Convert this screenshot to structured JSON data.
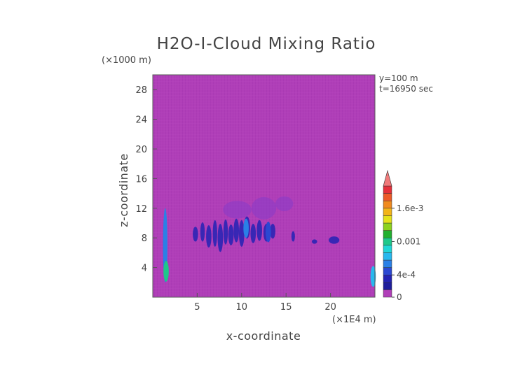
{
  "chart_data": {
    "type": "heatmap",
    "title": "H2O-I-Cloud Mixing Ratio",
    "xlabel": "x-coordinate",
    "ylabel": "z-coordinate",
    "x_unit": "(×1E4 m)",
    "y_unit": "(×1000 m)",
    "annotations": [
      "y=100 m",
      "t=16950 sec"
    ],
    "xlim": [
      0,
      25
    ],
    "ylim": [
      0,
      30
    ],
    "x_ticks": [
      5,
      10,
      15,
      20
    ],
    "y_ticks": [
      4,
      8,
      12,
      16,
      20,
      24,
      28
    ],
    "grid": false,
    "background_color": "#b03fb8",
    "colorbar": {
      "tick_labels": [
        "0",
        "4e-4",
        "0.001",
        "1.6e-3"
      ],
      "tick_values": [
        0,
        0.0004,
        0.001,
        0.0016
      ],
      "colors": [
        "#b03fb8",
        "#1e1e9c",
        "#2323b4",
        "#2b48d2",
        "#2a80e6",
        "#27b8ee",
        "#1fd6d6",
        "#1ec88a",
        "#22b02e",
        "#8cd21e",
        "#e4e21a",
        "#f2b418",
        "#f08a1e",
        "#ec5a28",
        "#e6303a",
        "#f07a7a"
      ],
      "extend_max": true,
      "extend_color": "#f07a7a"
    },
    "features": [
      {
        "x": 1.4,
        "z": 7.0,
        "value": 0.00055
      },
      {
        "x": 1.5,
        "z": 3.5,
        "value": 0.0009
      },
      {
        "x": 24.8,
        "z": 2.8,
        "value": 0.0007
      },
      {
        "x": 10.5,
        "z": 9.3,
        "value": 0.0005
      },
      {
        "x": 13.0,
        "z": 8.8,
        "value": 0.0004
      }
    ]
  }
}
